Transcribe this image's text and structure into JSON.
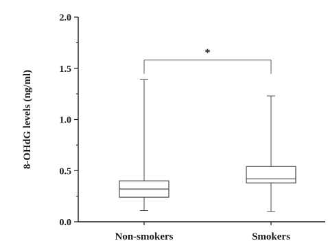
{
  "chart_data": {
    "type": "boxplot",
    "ylabel": "8-OHdG levels (ng/ml)",
    "ylim": [
      0.0,
      2.0
    ],
    "yticks": [
      0.0,
      0.5,
      1.0,
      1.5,
      2.0
    ],
    "ytick_labels": [
      "0.0",
      "0.5",
      "1.0",
      "1.5",
      "2.0"
    ],
    "categories": [
      "Non-smokers",
      "Smokers"
    ],
    "boxes": [
      {
        "category": "Non-smokers",
        "min": 0.11,
        "q1": 0.24,
        "median": 0.32,
        "q3": 0.4,
        "max": 1.39
      },
      {
        "category": "Smokers",
        "min": 0.1,
        "q1": 0.38,
        "median": 0.42,
        "q3": 0.54,
        "max": 1.23
      }
    ],
    "significance": {
      "between": [
        "Non-smokers",
        "Smokers"
      ],
      "label": "*",
      "y": 1.58
    },
    "grid": false,
    "colors": {
      "axis": "#1a1a1a",
      "box": "#4a4a4a",
      "bracket": "#555555"
    }
  }
}
